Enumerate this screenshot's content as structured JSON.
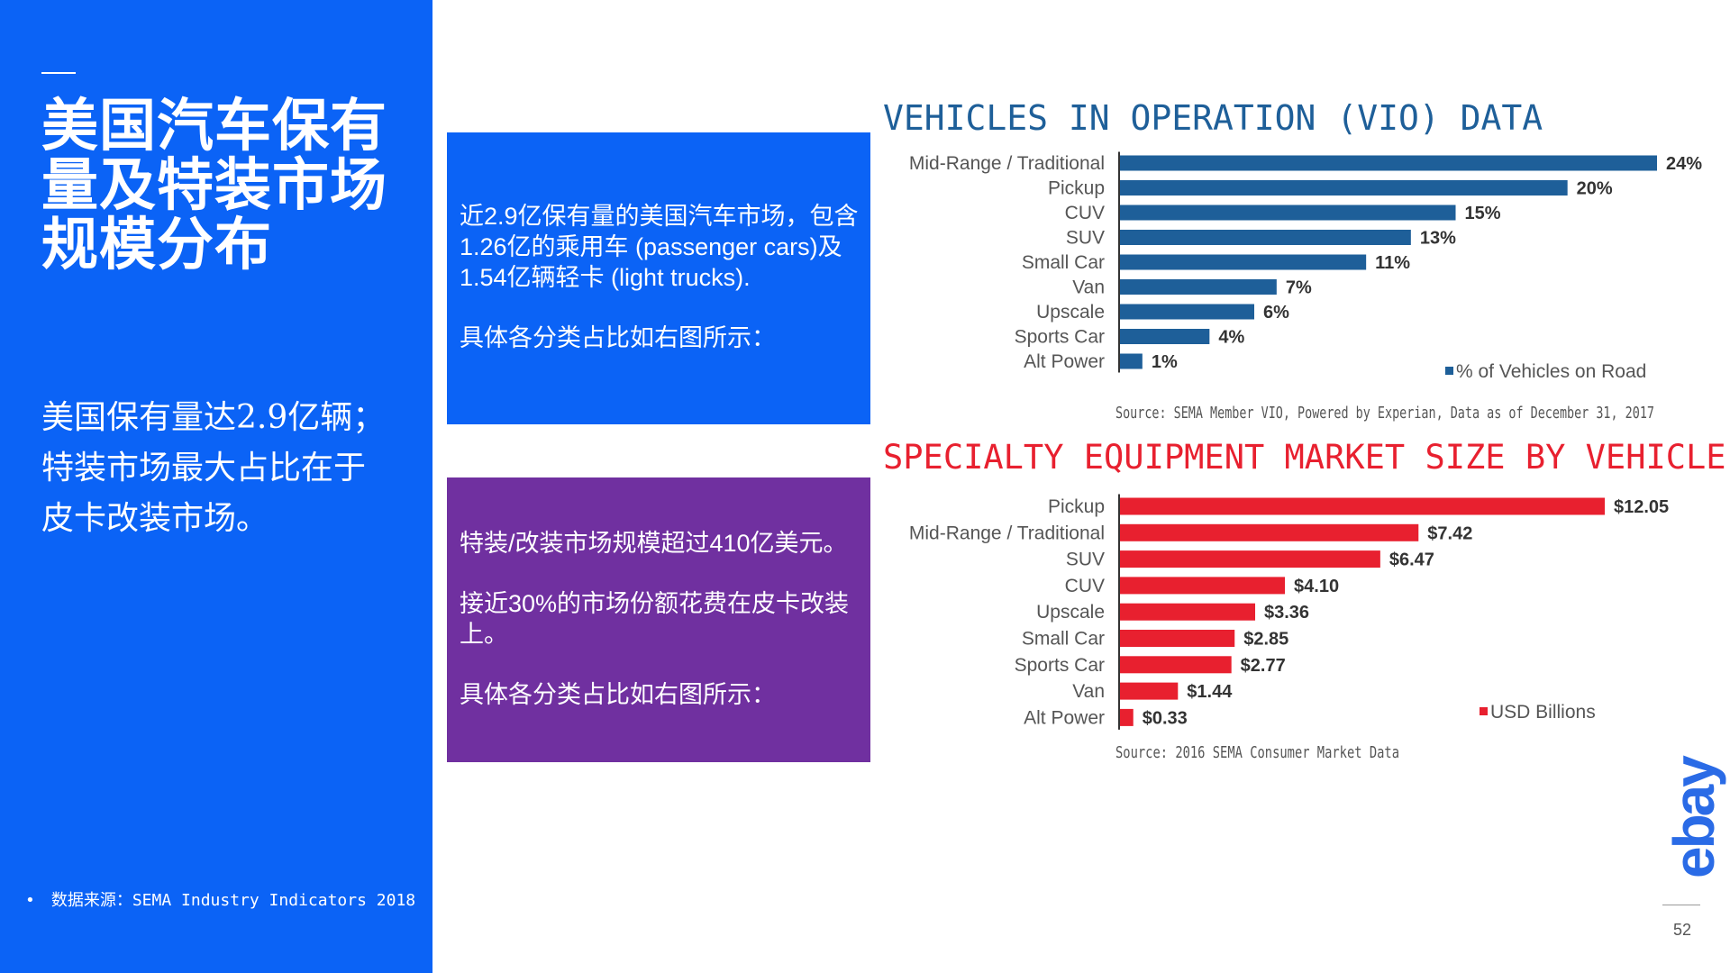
{
  "left": {
    "title": "美国汽车保有量及特装市场规模分布",
    "subtitle_lines": [
      "美国保有量达2.9亿辆；",
      "特装市场最大占比在于",
      "皮卡改装市场。"
    ],
    "source_bullet": "•",
    "source": "数据来源：SEMA Industry Indicators 2018"
  },
  "box_blue": {
    "p1": "近2.9亿保有量的美国汽车市场，包含1.26亿的乘用车 (passenger cars)及1.54亿辆轻卡 (light trucks).",
    "p2": "具体各分类占比如右图所示："
  },
  "box_purple": {
    "p1": "特装/改装市场规模超过410亿美元。",
    "p2": "接近30%的市场份额花费在皮卡改装上。",
    "p3": "具体各分类占比如右图所示："
  },
  "chart_data": [
    {
      "type": "bar",
      "orientation": "horizontal",
      "title": "VEHICLES IN OPERATION (VIO) DATA",
      "categories": [
        "Mid-Range / Traditional",
        "Pickup",
        "CUV",
        "SUV",
        "Small Car",
        "Van",
        "Upscale",
        "Sports Car",
        "Alt Power"
      ],
      "values": [
        24,
        20,
        15,
        13,
        11,
        7,
        6,
        4,
        1
      ],
      "value_labels": [
        "24%",
        "20%",
        "15%",
        "13%",
        "11%",
        "7%",
        "6%",
        "4%",
        "1%"
      ],
      "series": [
        {
          "name": "% of Vehicles on Road",
          "values": [
            24,
            20,
            15,
            13,
            11,
            7,
            6,
            4,
            1
          ]
        }
      ],
      "legend": "% of Vehicles on Road",
      "legend_position": "bottom-right",
      "color": "#1e5f99",
      "xlim": [
        0,
        24
      ],
      "source": "Source: SEMA Member VIO, Powered by Experian, Data as of December 31, 2017"
    },
    {
      "type": "bar",
      "orientation": "horizontal",
      "title": "SPECIALTY EQUIPMENT MARKET SIZE BY VEHICLE SEGMENT",
      "categories": [
        "Pickup",
        "Mid-Range / Traditional",
        "SUV",
        "CUV",
        "Upscale",
        "Small Car",
        "Sports Car",
        "Van",
        "Alt Power"
      ],
      "values": [
        12.05,
        7.42,
        6.47,
        4.1,
        3.36,
        2.85,
        2.77,
        1.44,
        0.33
      ],
      "value_labels": [
        "$12.05",
        "$7.42",
        "$6.47",
        "$4.10",
        "$3.36",
        "$2.85",
        "$2.77",
        "$1.44",
        "$0.33"
      ],
      "series": [
        {
          "name": "USD Billions",
          "values": [
            12.05,
            7.42,
            6.47,
            4.1,
            3.36,
            2.85,
            2.77,
            1.44,
            0.33
          ]
        }
      ],
      "legend": "USD Billions",
      "legend_position": "bottom-right",
      "color": "#e8202f",
      "xlim": [
        0,
        12.05
      ],
      "source": "Source: 2016 SEMA Consumer Market Data"
    }
  ],
  "logo": {
    "text": "ebay",
    "color": "#2a6be6"
  },
  "page_number": "52"
}
